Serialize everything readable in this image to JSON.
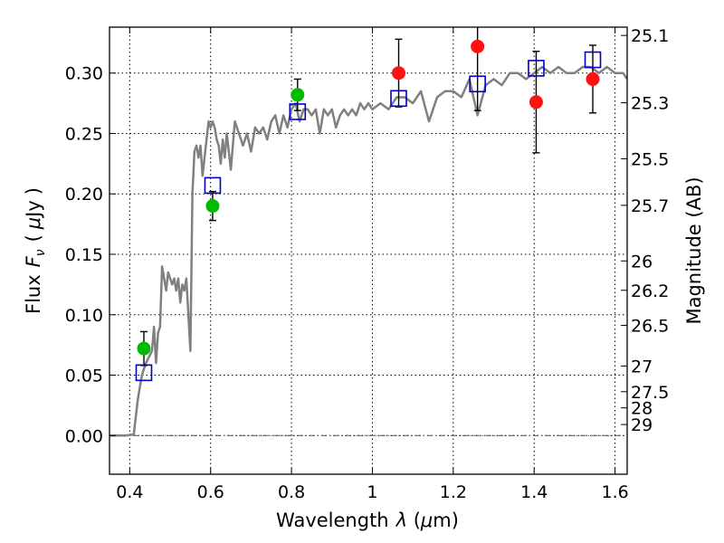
{
  "chart_data": {
    "type": "scatter",
    "title": "",
    "xlabel": "Wavelength",
    "xlabel_symbol": "λ",
    "xlabel_unit_open": " (",
    "xlabel_unit_mu": "μ",
    "xlabel_unit_rest": "m)",
    "ylabel": "Flux",
    "ylabel_symbol": "F",
    "ylabel_sub": "ν",
    "ylabel_unit_open": "(",
    "ylabel_unit_mu": "μ",
    "ylabel_unit_rest": "Jy",
    "ylabel_unit_close": ")",
    "y2label": "Magnitude (AB)",
    "xlim": [
      0.35,
      1.63
    ],
    "ylim": [
      -0.032,
      0.338
    ],
    "grid": true,
    "x_ticks": [
      0.4,
      0.6,
      0.8,
      1.0,
      1.2,
      1.4,
      1.6
    ],
    "x_tick_labels": [
      "0.4",
      "0.6",
      "0.8",
      "1",
      "1.2",
      "1.4",
      "1.6"
    ],
    "y_ticks": [
      0.0,
      0.05,
      0.1,
      0.15,
      0.2,
      0.25,
      0.3
    ],
    "y_tick_labels": [
      "0.00",
      "0.05",
      "0.10",
      "0.15",
      "0.20",
      "0.25",
      "0.30"
    ],
    "mag_ticks": [
      {
        "label": "25.1",
        "mag": 25.1
      },
      {
        "label": "25.3",
        "mag": 25.3
      },
      {
        "label": "25.5",
        "mag": 25.5
      },
      {
        "label": "25.7",
        "mag": 25.7
      },
      {
        "label": "26",
        "mag": 26.0
      },
      {
        "label": "26.2",
        "mag": 26.2
      },
      {
        "label": "26.5",
        "mag": 26.5
      },
      {
        "label": "27",
        "mag": 27.0
      },
      {
        "label": "27.5",
        "mag": 27.5
      },
      {
        "label": "28",
        "mag": 28.0
      },
      {
        "label": "29",
        "mag": 29.0
      }
    ],
    "colors": {
      "model": "#808080",
      "green": "#00bb00",
      "red": "#ff1111",
      "square": "#0000cc",
      "errorbar": "#000000",
      "grid": "#000000"
    },
    "series": [
      {
        "name": "model spectrum",
        "kind": "line",
        "x": [
          0.35,
          0.37,
          0.39,
          0.41,
          0.42,
          0.43,
          0.44,
          0.455,
          0.46,
          0.465,
          0.47,
          0.475,
          0.48,
          0.485,
          0.49,
          0.495,
          0.5,
          0.505,
          0.51,
          0.515,
          0.52,
          0.525,
          0.53,
          0.535,
          0.54,
          0.545,
          0.55,
          0.555,
          0.56,
          0.565,
          0.57,
          0.575,
          0.58,
          0.59,
          0.595,
          0.6,
          0.605,
          0.61,
          0.615,
          0.62,
          0.625,
          0.63,
          0.635,
          0.64,
          0.65,
          0.66,
          0.67,
          0.68,
          0.69,
          0.7,
          0.71,
          0.72,
          0.73,
          0.74,
          0.75,
          0.76,
          0.77,
          0.78,
          0.79,
          0.8,
          0.81,
          0.82,
          0.83,
          0.84,
          0.85,
          0.86,
          0.87,
          0.88,
          0.89,
          0.9,
          0.91,
          0.92,
          0.93,
          0.94,
          0.95,
          0.96,
          0.97,
          0.98,
          0.99,
          1.0,
          1.02,
          1.04,
          1.06,
          1.08,
          1.1,
          1.12,
          1.14,
          1.16,
          1.18,
          1.2,
          1.22,
          1.24,
          1.26,
          1.28,
          1.3,
          1.32,
          1.34,
          1.36,
          1.38,
          1.4,
          1.42,
          1.44,
          1.46,
          1.48,
          1.5,
          1.52,
          1.54,
          1.56,
          1.58,
          1.6,
          1.62,
          1.63
        ],
        "y": [
          0.0,
          0.0,
          0.0,
          0.001,
          0.03,
          0.05,
          0.06,
          0.07,
          0.09,
          0.06,
          0.085,
          0.09,
          0.14,
          0.13,
          0.12,
          0.135,
          0.13,
          0.125,
          0.13,
          0.12,
          0.13,
          0.11,
          0.125,
          0.12,
          0.13,
          0.1,
          0.07,
          0.2,
          0.235,
          0.24,
          0.23,
          0.24,
          0.215,
          0.245,
          0.26,
          0.255,
          0.26,
          0.255,
          0.245,
          0.24,
          0.225,
          0.245,
          0.23,
          0.25,
          0.22,
          0.26,
          0.25,
          0.24,
          0.25,
          0.235,
          0.255,
          0.25,
          0.255,
          0.245,
          0.26,
          0.265,
          0.25,
          0.265,
          0.255,
          0.27,
          0.275,
          0.26,
          0.27,
          0.27,
          0.265,
          0.27,
          0.25,
          0.27,
          0.265,
          0.27,
          0.255,
          0.265,
          0.27,
          0.265,
          0.27,
          0.265,
          0.275,
          0.27,
          0.275,
          0.27,
          0.275,
          0.27,
          0.28,
          0.28,
          0.275,
          0.285,
          0.26,
          0.28,
          0.285,
          0.285,
          0.28,
          0.295,
          0.265,
          0.29,
          0.295,
          0.29,
          0.3,
          0.3,
          0.295,
          0.3,
          0.305,
          0.3,
          0.305,
          0.3,
          0.3,
          0.305,
          0.305,
          0.3,
          0.305,
          0.3,
          0.3,
          0.295
        ]
      },
      {
        "name": "green points",
        "kind": "markers",
        "marker": "circle",
        "points": [
          {
            "x": 0.435,
            "y": 0.072,
            "err": 0.014
          },
          {
            "x": 0.605,
            "y": 0.19,
            "err": 0.012
          },
          {
            "x": 0.815,
            "y": 0.282,
            "err": 0.013
          }
        ]
      },
      {
        "name": "red points",
        "kind": "markers",
        "marker": "circle",
        "points": [
          {
            "x": 1.065,
            "y": 0.3,
            "err": 0.028
          },
          {
            "x": 1.26,
            "y": 0.322,
            "err": 0.053
          },
          {
            "x": 1.405,
            "y": 0.276,
            "err": 0.042
          },
          {
            "x": 1.545,
            "y": 0.295,
            "err": 0.028
          }
        ]
      },
      {
        "name": "model photometry",
        "kind": "markers",
        "marker": "open-square",
        "points": [
          {
            "x": 0.435,
            "y": 0.052
          },
          {
            "x": 0.605,
            "y": 0.207
          },
          {
            "x": 0.815,
            "y": 0.268
          },
          {
            "x": 1.065,
            "y": 0.279
          },
          {
            "x": 1.26,
            "y": 0.291
          },
          {
            "x": 1.405,
            "y": 0.304
          },
          {
            "x": 1.545,
            "y": 0.311
          }
        ]
      }
    ]
  }
}
